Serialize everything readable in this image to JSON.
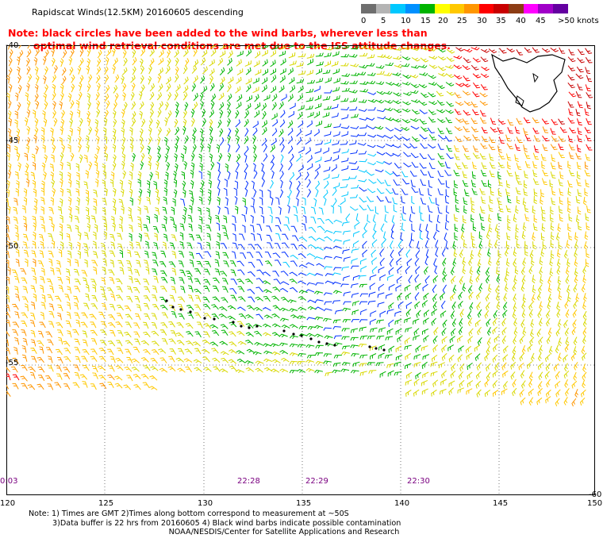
{
  "header": {
    "title": "Rapidscat Winds(12.5KM) 20160605 descending",
    "note_line1": "Note: black circles have been added to the wind barbs, wherever less than",
    "note_line2": "optimal wind retrieval conditions are met due to the ISS attitude changes."
  },
  "legend": {
    "labels": [
      "0",
      "5",
      "10",
      "15",
      "20",
      "25",
      "30",
      "35",
      "40",
      "45",
      ">50 knots"
    ],
    "colors": [
      "#6e6e6e",
      "#b4b4b4",
      "#00c8ff",
      "#0090ff",
      "#00b400",
      "#ffff00",
      "#ffc800",
      "#ff9600",
      "#ff0000",
      "#c80000",
      "#8c3c14",
      "#ff00ff",
      "#a000c8",
      "#6400a0"
    ]
  },
  "axes": {
    "lat_labels": [
      "-40",
      "-45",
      "-50",
      "-55",
      "-60"
    ],
    "lon_labels": [
      "120",
      "125",
      "130",
      "135",
      "140",
      "145",
      "150"
    ]
  },
  "times": [
    "0:03",
    "22:28",
    "22:29",
    "22:30"
  ],
  "footer": {
    "line1": "Note: 1) Times are GMT 2)Times along bottom correspond to measurement at ~50S",
    "line2": "3)Data buffer is 22 hrs from 20160605 4) Black wind barbs indicate possible contamination",
    "line3": "NOAA/NESDIS/Center for Satellite Applications and Research"
  }
}
